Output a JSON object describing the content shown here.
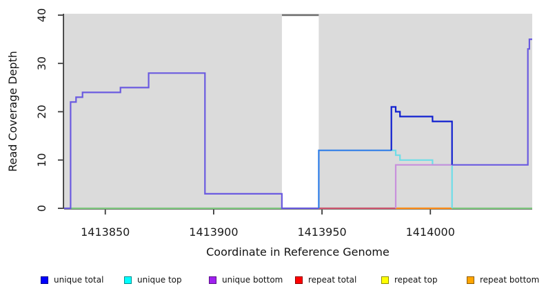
{
  "chart_data": {
    "type": "line",
    "subtype": "step-coverage-plot",
    "title": "",
    "xlabel": "Coordinate in Reference Genome",
    "ylabel": "Read Coverage Depth",
    "xlim": [
      1413831,
      1414047
    ],
    "ylim": [
      0,
      40
    ],
    "x_ticks": [
      1413850,
      1413900,
      1413950,
      1414000
    ],
    "y_ticks": [
      0,
      10,
      20,
      30,
      40
    ],
    "grid": false,
    "legend_position": "bottom",
    "plot_bg": "#dbdbdb",
    "axis_color": "#3a3a3a",
    "tick_label_color": "#1a1a1a",
    "masked_region": {
      "x_start": 1413931.5,
      "x_end": 1413948.5,
      "fill": "#ffffff",
      "clip_line_y": 40,
      "clip_line_color": "#6e6e6e"
    },
    "series": [
      {
        "name": "baseline-zero",
        "color": "#7fc87f",
        "points": [
          [
            1413831,
            0
          ],
          [
            1414047,
            0
          ]
        ]
      },
      {
        "name": "repeat-total",
        "color": "#cf5570",
        "points": [
          [
            1413948.5,
            0
          ],
          [
            1413984,
            0
          ]
        ]
      },
      {
        "name": "repeat-bottom",
        "color": "#ff8c1a",
        "points": [
          [
            1413984,
            0
          ],
          [
            1414010,
            0
          ]
        ]
      },
      {
        "name": "unique-total-bottom-overlap-left",
        "color": "#6a5ae0",
        "points": [
          [
            1413831,
            0
          ],
          [
            1413834,
            0
          ],
          [
            1413834,
            22
          ],
          [
            1413836.5,
            22
          ],
          [
            1413836.5,
            23
          ],
          [
            1413839.5,
            23
          ],
          [
            1413839.5,
            24
          ],
          [
            1413857,
            24
          ],
          [
            1413857,
            25
          ],
          [
            1413870,
            25
          ],
          [
            1413870,
            28
          ],
          [
            1413896,
            28
          ],
          [
            1413896,
            3
          ],
          [
            1413931.5,
            3
          ],
          [
            1413931.5,
            0
          ],
          [
            1413948.5,
            0
          ]
        ]
      },
      {
        "name": "unique-total-top-overlap",
        "color": "#2e7de8",
        "points": [
          [
            1413948.5,
            0
          ],
          [
            1413948.5,
            12
          ],
          [
            1413982,
            12
          ]
        ]
      },
      {
        "name": "unique-top",
        "color": "#6edde8",
        "points": [
          [
            1413982,
            12
          ],
          [
            1413984,
            12
          ],
          [
            1413984,
            11
          ],
          [
            1413986,
            11
          ],
          [
            1413986,
            10
          ],
          [
            1414001,
            10
          ],
          [
            1414001,
            9
          ],
          [
            1414010,
            9
          ],
          [
            1414010,
            0
          ]
        ]
      },
      {
        "name": "unique-bottom",
        "color": "#c890dc",
        "points": [
          [
            1413984,
            0
          ],
          [
            1413984,
            9
          ],
          [
            1414010,
            9
          ]
        ]
      },
      {
        "name": "unique-total",
        "color": "#0f1fd0",
        "points": [
          [
            1413982,
            12
          ],
          [
            1413982,
            21
          ],
          [
            1413984,
            21
          ],
          [
            1413984,
            20
          ],
          [
            1413986,
            20
          ],
          [
            1413986,
            19
          ],
          [
            1414001,
            19
          ],
          [
            1414001,
            18
          ],
          [
            1414010,
            18
          ],
          [
            1414010,
            9
          ]
        ]
      },
      {
        "name": "unique-total-bottom-overlap-right",
        "color": "#6a5ae0",
        "points": [
          [
            1414010,
            9
          ],
          [
            1414045,
            9
          ],
          [
            1414045,
            33
          ],
          [
            1414045.7,
            33
          ],
          [
            1414045.7,
            35
          ],
          [
            1414047,
            35
          ]
        ]
      }
    ]
  },
  "legend": {
    "swatch_border": "rgba(0,0,0,0.45)",
    "items": [
      {
        "label": "unique total",
        "color": "#0000ff"
      },
      {
        "label": "unique top",
        "color": "#00ffff"
      },
      {
        "label": "unique bottom",
        "color": "#a020f0"
      },
      {
        "label": "repeat total",
        "color": "#ff0000"
      },
      {
        "label": "repeat top",
        "color": "#ffff00"
      },
      {
        "label": "repeat bottom",
        "color": "#ffa500"
      }
    ]
  }
}
